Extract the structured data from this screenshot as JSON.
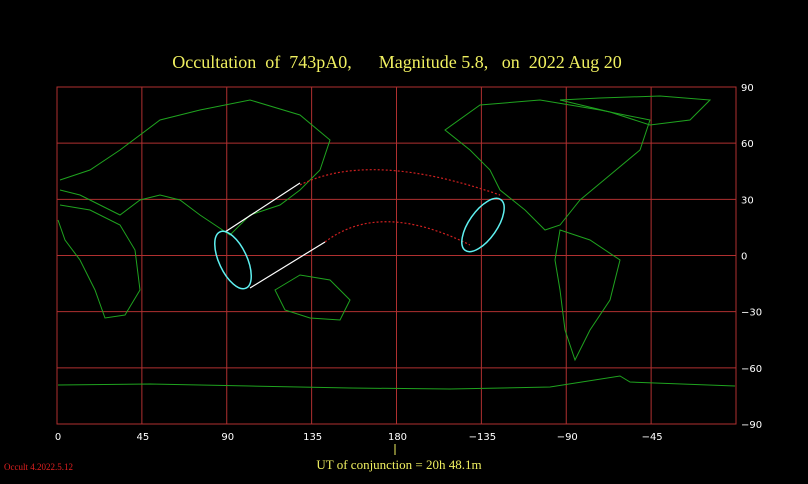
{
  "header": {
    "title": "Occultation  of  743pA0,      Magnitude 5.8,   on  2022 Aug 20"
  },
  "map": {
    "lon_labels": [
      "0",
      "45",
      "90",
      "135",
      "180",
      "−135",
      "−90",
      "−45"
    ],
    "lat_labels": [
      "90",
      "60",
      "30",
      "0",
      "−30",
      "−60",
      "−90"
    ]
  },
  "footer": {
    "conjunction": "UT of conjunction = 20h 48.1m",
    "version": "Occult 4.2022.5.12"
  }
}
